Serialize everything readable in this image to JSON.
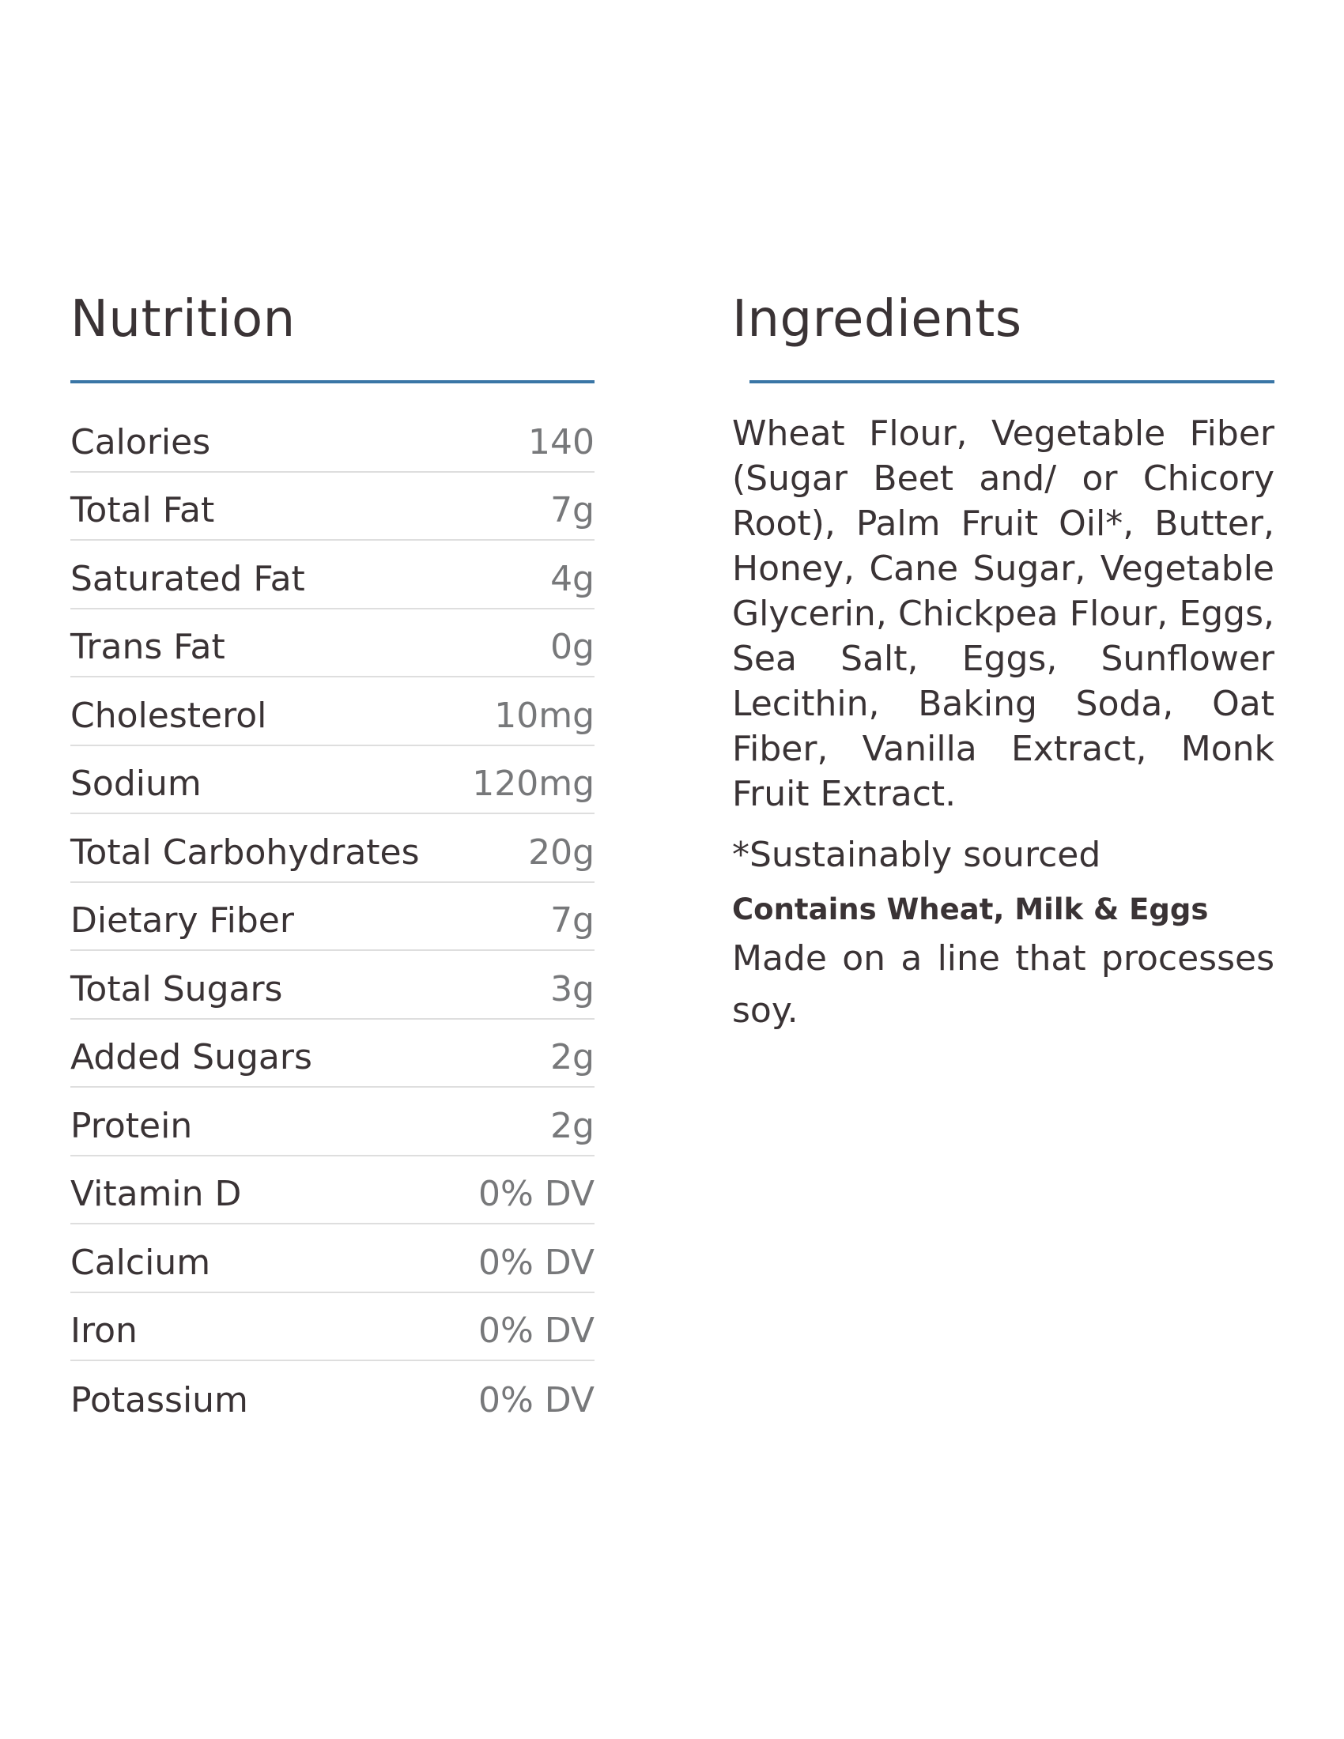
{
  "nutrition": {
    "title": "Nutrition",
    "rows": [
      {
        "label": "Calories",
        "value": "140"
      },
      {
        "label": "Total Fat",
        "value": "7g"
      },
      {
        "label": "Saturated Fat",
        "value": "4g"
      },
      {
        "label": "Trans Fat",
        "value": "0g"
      },
      {
        "label": "Cholesterol",
        "value": "10mg"
      },
      {
        "label": "Sodium",
        "value": "120mg"
      },
      {
        "label": "Total Carbohydrates",
        "value": "20g"
      },
      {
        "label": "Dietary Fiber",
        "value": "7g"
      },
      {
        "label": "Total Sugars",
        "value": "3g"
      },
      {
        "label": "Added Sugars",
        "value": "2g"
      },
      {
        "label": "Protein",
        "value": "2g"
      },
      {
        "label": "Vitamin D",
        "value": "0% DV"
      },
      {
        "label": "Calcium",
        "value": "0% DV"
      },
      {
        "label": "Iron",
        "value": "0% DV"
      },
      {
        "label": "Potassium",
        "value": "0% DV"
      }
    ]
  },
  "ingredients": {
    "title": "Ingredients",
    "text": "Wheat Flour, Vegetable Fiber (Sugar Beet and/ or Chicory Root), Palm Fruit Oil*, Butter, Honey, Cane Sugar, Vegetable Glycerin, Chickpea Flour, Eggs, Sea Salt, Eggs, Sunflower Lecithin, Baking Soda, Oat Fiber, Vanilla Extract, Monk Fruit Extract.",
    "footnote": "*Sustainably sourced",
    "allergens": "Contains Wheat, Milk & Eggs",
    "line_note": "Made on a line that processes soy."
  },
  "colors": {
    "text": "#3a3335",
    "value_text": "#77787a",
    "accent_rule": "#3a76a6",
    "row_divider": "#dedede"
  }
}
